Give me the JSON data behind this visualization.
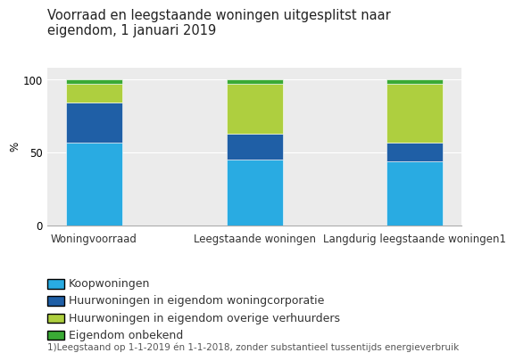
{
  "title": "Voorraad en leegstaande woningen uitgesplitst naar\neigendom, 1 januari 2019",
  "ylabel": "%",
  "categories": [
    "Woningvoorraad",
    "Leegstaande woningen",
    "Langdurig leegstaande woningen1"
  ],
  "series": {
    "Koopwoningen": [
      57,
      45,
      44
    ],
    "Huurwoningen in eigendom woningcorporatie": [
      27,
      18,
      13
    ],
    "Huurwoningen in eigendom overige verhuurders": [
      13,
      34,
      40
    ],
    "Eigendom onbekend": [
      3,
      3,
      3
    ]
  },
  "colors": {
    "Koopwoningen": "#29ABE2",
    "Huurwoningen in eigendom woningcorporatie": "#1F5FA6",
    "Huurwoningen in eigendom overige verhuurders": "#AECF3F",
    "Eigendom onbekend": "#3AAA35"
  },
  "ylim": [
    0,
    108
  ],
  "yticks": [
    0,
    50,
    100
  ],
  "background_color": "#FFFFFF",
  "plot_area_color": "#EBEBEB",
  "footnote": "1)Leegstaand op 1-1-2019 én 1-1-2018, zonder substantieel tussentijds energieverbruik",
  "bar_width": 0.35,
  "title_fontsize": 10.5,
  "tick_fontsize": 8.5,
  "legend_fontsize": 9
}
